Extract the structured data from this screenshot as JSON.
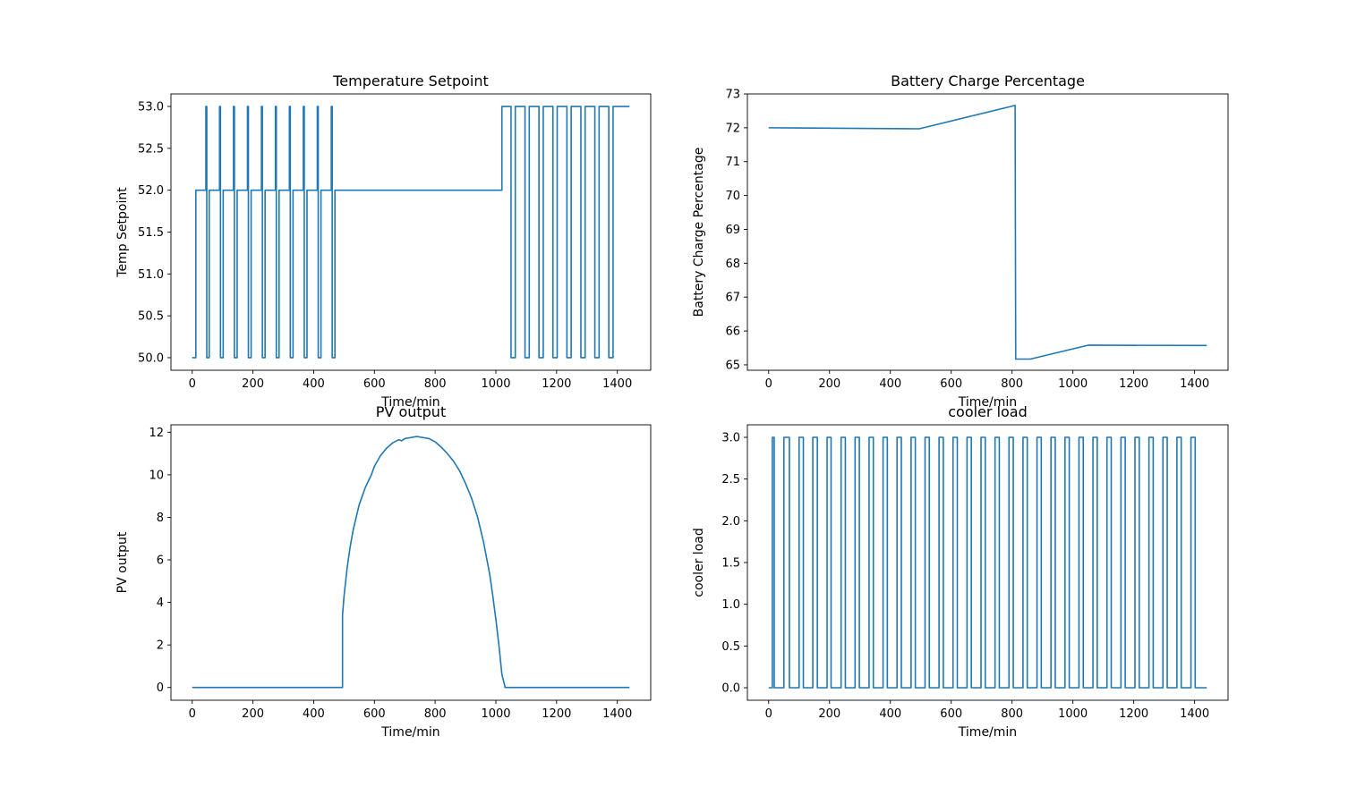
{
  "chart_data": [
    {
      "type": "line",
      "title": "Temperature Setpoint",
      "xlabel": "Time/min",
      "ylabel": "Temp Setpoint",
      "xlim": [
        -70,
        1510
      ],
      "ylim": [
        49.85,
        53.15
      ],
      "xticks": [
        0,
        200,
        400,
        600,
        800,
        1000,
        1200,
        1400
      ],
      "yticks": [
        50.0,
        50.5,
        51.0,
        51.5,
        52.0,
        52.5,
        53.0
      ],
      "ytick_labels": [
        "50.0",
        "50.5",
        "51.0",
        "51.5",
        "52.0",
        "52.5",
        "53.0"
      ],
      "grid": false,
      "line_color": "#1f77b4",
      "series": [
        {
          "x": [
            0,
            12,
            12,
            45,
            45,
            48,
            48,
            56,
            56,
            90,
            90,
            93,
            93,
            102,
            102,
            136,
            136,
            139,
            139,
            148,
            148,
            182,
            182,
            185,
            185,
            194,
            194,
            228,
            228,
            231,
            231,
            240,
            240,
            274,
            274,
            277,
            277,
            286,
            286,
            320,
            320,
            323,
            323,
            332,
            332,
            366,
            366,
            369,
            369,
            378,
            378,
            412,
            412,
            415,
            415,
            424,
            424,
            458,
            458,
            461,
            461,
            470,
            470,
            1020,
            1020,
            1050,
            1050,
            1064,
            1064,
            1096,
            1096,
            1110,
            1110,
            1142,
            1142,
            1156,
            1156,
            1188,
            1188,
            1202,
            1202,
            1234,
            1234,
            1248,
            1248,
            1280,
            1280,
            1294,
            1294,
            1326,
            1326,
            1340,
            1340,
            1372,
            1372,
            1386,
            1386,
            1440
          ],
          "y": [
            50,
            50,
            52,
            52,
            53,
            53,
            50,
            50,
            52,
            52,
            53,
            53,
            50,
            50,
            52,
            52,
            53,
            53,
            50,
            50,
            52,
            52,
            53,
            53,
            50,
            50,
            52,
            52,
            53,
            53,
            50,
            50,
            52,
            52,
            53,
            53,
            50,
            50,
            52,
            52,
            53,
            53,
            50,
            50,
            52,
            52,
            53,
            53,
            50,
            50,
            52,
            52,
            53,
            53,
            50,
            50,
            52,
            52,
            53,
            53,
            50,
            50,
            52,
            52,
            53,
            53,
            50,
            50,
            53,
            53,
            50,
            50,
            53,
            53,
            50,
            50,
            53,
            53,
            50,
            50,
            53,
            53,
            50,
            50,
            53,
            53,
            50,
            50,
            53,
            53,
            50,
            50,
            53,
            53,
            50,
            50,
            53,
            53
          ]
        }
      ]
    },
    {
      "type": "line",
      "title": "Battery Charge Percentage",
      "xlabel": "Time/min",
      "ylabel": "Battery Charge Percentage",
      "xlim": [
        -70,
        1510
      ],
      "ylim": [
        64.84,
        73.0
      ],
      "xticks": [
        0,
        200,
        400,
        600,
        800,
        1000,
        1200,
        1400
      ],
      "yticks": [
        65,
        66,
        67,
        68,
        69,
        70,
        71,
        72,
        73
      ],
      "ytick_labels": [
        "65",
        "66",
        "67",
        "68",
        "69",
        "70",
        "71",
        "72",
        "73"
      ],
      "grid": false,
      "line_color": "#1f77b4",
      "series": [
        {
          "x": [
            0,
            495,
            810,
            812,
            860,
            1050,
            1440
          ],
          "y": [
            72.0,
            71.97,
            72.66,
            65.17,
            65.17,
            65.58,
            65.57
          ]
        }
      ]
    },
    {
      "type": "line",
      "title": "PV output",
      "xlabel": "Time/min",
      "ylabel": "PV output",
      "xlim": [
        -70,
        1510
      ],
      "ylim": [
        -0.6,
        12.35
      ],
      "xticks": [
        0,
        200,
        400,
        600,
        800,
        1000,
        1200,
        1400
      ],
      "yticks": [
        0,
        2,
        4,
        6,
        8,
        10,
        12
      ],
      "ytick_labels": [
        "0",
        "2",
        "4",
        "6",
        "8",
        "10",
        "12"
      ],
      "grid": false,
      "line_color": "#1f77b4",
      "series": [
        {
          "x": [
            0,
            495,
            495,
            500,
            510,
            520,
            530,
            540,
            550,
            560,
            570,
            580,
            590,
            600,
            620,
            640,
            660,
            680,
            690,
            700,
            720,
            740,
            760,
            780,
            800,
            820,
            840,
            860,
            880,
            900,
            920,
            940,
            960,
            980,
            990,
            1000,
            1010,
            1020,
            1030,
            1030,
            1440
          ],
          "y": [
            0,
            0,
            3.4,
            4.3,
            5.6,
            6.6,
            7.4,
            8.0,
            8.6,
            9.0,
            9.4,
            9.7,
            10.0,
            10.4,
            10.9,
            11.25,
            11.5,
            11.65,
            11.6,
            11.7,
            11.75,
            11.8,
            11.75,
            11.7,
            11.55,
            11.3,
            11.0,
            10.65,
            10.2,
            9.6,
            8.9,
            8.0,
            6.8,
            5.3,
            4.3,
            3.2,
            2.0,
            0.6,
            0.05,
            0,
            0
          ]
        }
      ]
    },
    {
      "type": "line",
      "title": "cooler load",
      "xlabel": "Time/min",
      "ylabel": "cooler load",
      "xlim": [
        -70,
        1510
      ],
      "ylim": [
        -0.15,
        3.15
      ],
      "xticks": [
        0,
        200,
        400,
        600,
        800,
        1000,
        1200,
        1400
      ],
      "yticks": [
        0.0,
        0.5,
        1.0,
        1.5,
        2.0,
        2.5,
        3.0
      ],
      "ytick_labels": [
        "0.0",
        "0.5",
        "1.0",
        "1.5",
        "2.0",
        "2.5",
        "3.0"
      ],
      "grid": false,
      "line_color": "#1f77b4",
      "series": [
        {
          "x": [
            0,
            12,
            12,
            18,
            18,
            50,
            50,
            68,
            68,
            100,
            100,
            114,
            114,
            145,
            145,
            160,
            160,
            192,
            192,
            205,
            205,
            238,
            238,
            252,
            252,
            284,
            284,
            298,
            298,
            330,
            330,
            344,
            344,
            376,
            376,
            390,
            390,
            422,
            422,
            436,
            436,
            468,
            468,
            482,
            482,
            514,
            514,
            528,
            528,
            560,
            560,
            574,
            574,
            606,
            606,
            620,
            620,
            652,
            652,
            666,
            666,
            698,
            698,
            712,
            712,
            744,
            744,
            758,
            758,
            790,
            790,
            804,
            804,
            836,
            836,
            850,
            850,
            882,
            882,
            896,
            896,
            928,
            928,
            942,
            942,
            974,
            974,
            988,
            988,
            1020,
            1020,
            1034,
            1034,
            1066,
            1066,
            1080,
            1080,
            1112,
            1112,
            1126,
            1126,
            1158,
            1158,
            1172,
            1172,
            1204,
            1204,
            1218,
            1218,
            1250,
            1250,
            1264,
            1264,
            1296,
            1296,
            1310,
            1310,
            1342,
            1342,
            1356,
            1356,
            1388,
            1388,
            1402,
            1402,
            1440
          ],
          "y": [
            0,
            0,
            3,
            3,
            0,
            0,
            3,
            3,
            0,
            0,
            3,
            3,
            0,
            0,
            3,
            3,
            0,
            0,
            3,
            3,
            0,
            0,
            3,
            3,
            0,
            0,
            3,
            3,
            0,
            0,
            3,
            3,
            0,
            0,
            3,
            3,
            0,
            0,
            3,
            3,
            0,
            0,
            3,
            3,
            0,
            0,
            3,
            3,
            0,
            0,
            3,
            3,
            0,
            0,
            3,
            3,
            0,
            0,
            3,
            3,
            0,
            0,
            3,
            3,
            0,
            0,
            3,
            3,
            0,
            0,
            3,
            3,
            0,
            0,
            3,
            3,
            0,
            0,
            3,
            3,
            0,
            0,
            3,
            3,
            0,
            0,
            3,
            3,
            0,
            0,
            3,
            3,
            0,
            0,
            3,
            3,
            0,
            0,
            3,
            3,
            0,
            0,
            3,
            3,
            0,
            0,
            3,
            3,
            0,
            0,
            3,
            3,
            0,
            0,
            3,
            3,
            0,
            0,
            3,
            3,
            0,
            0,
            3,
            3,
            0,
            0
          ]
        }
      ]
    }
  ]
}
